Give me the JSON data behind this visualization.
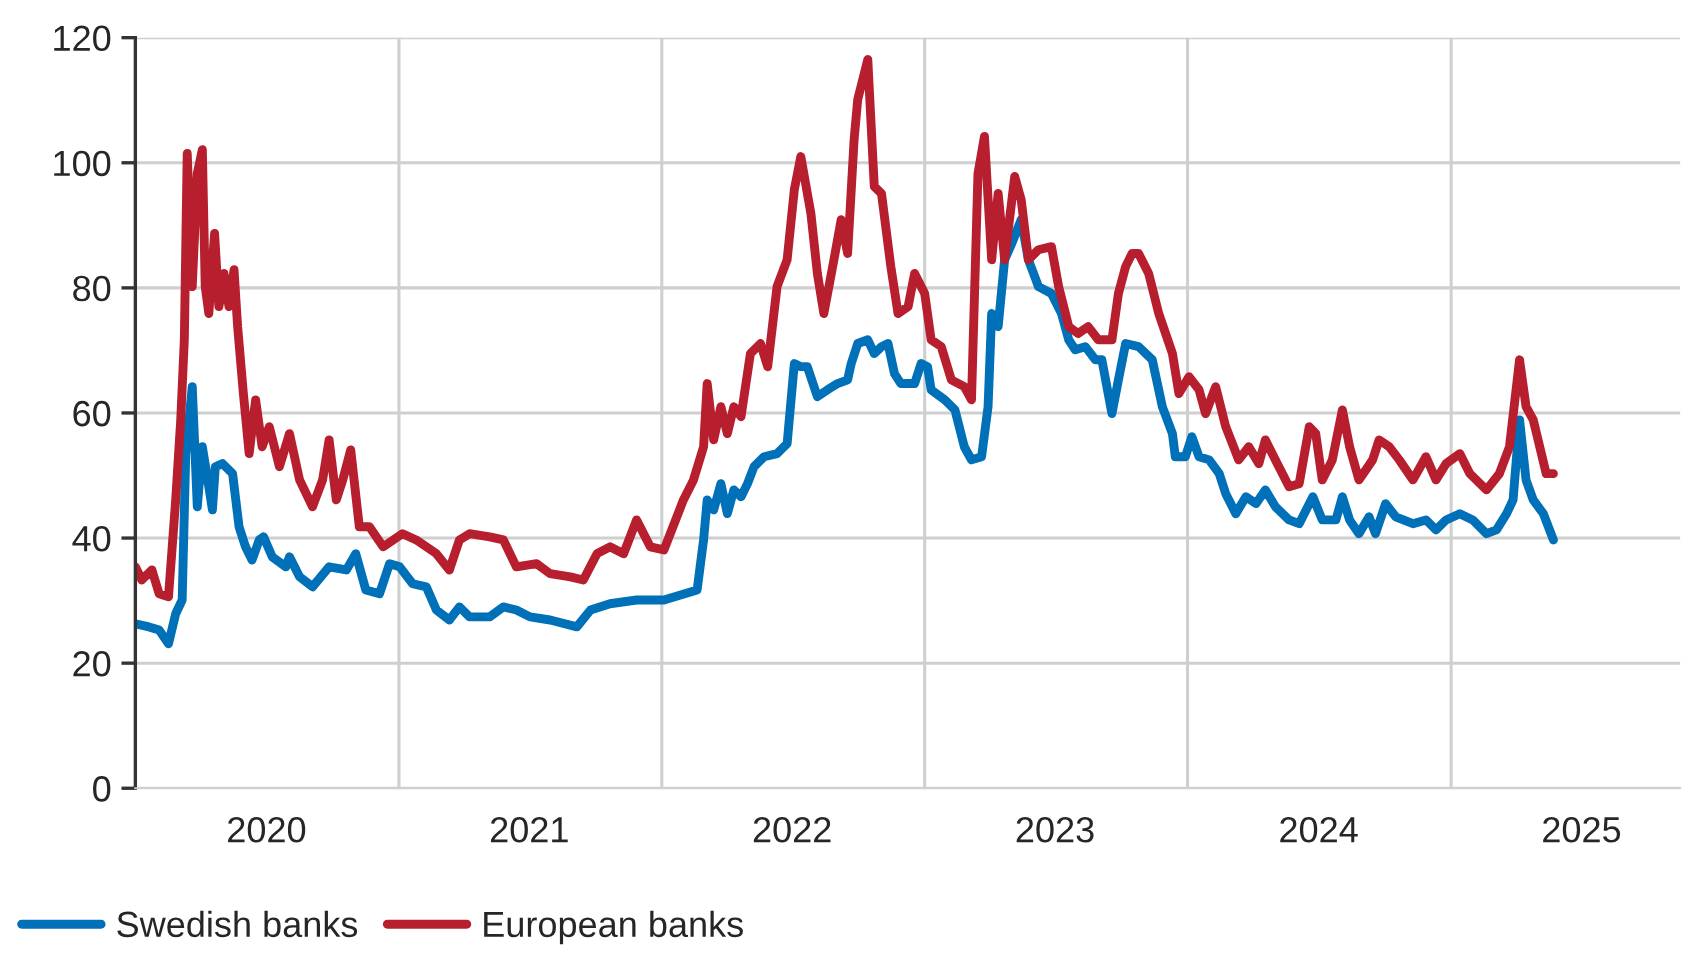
{
  "chart_data": {
    "type": "line",
    "xlim": [
      "2020-01-01",
      "2025-11-15"
    ],
    "xticks": [
      {
        "value": "2020-07-01",
        "label": "2020"
      },
      {
        "value": "2021-01-01",
        "label": null
      },
      {
        "value": "2021-07-01",
        "label": "2021"
      },
      {
        "value": "2022-01-01",
        "label": null
      },
      {
        "value": "2022-07-01",
        "label": "2022"
      },
      {
        "value": "2023-01-01",
        "label": null
      },
      {
        "value": "2023-07-01",
        "label": "2023"
      },
      {
        "value": "2024-01-01",
        "label": null
      },
      {
        "value": "2024-07-01",
        "label": "2024"
      },
      {
        "value": "2025-01-01",
        "label": null
      },
      {
        "value": "2025-07-01",
        "label": "2025"
      }
    ],
    "ylim": [
      0,
      120
    ],
    "yticks": [
      0,
      20,
      40,
      60,
      80,
      100,
      120
    ],
    "grid": true,
    "legend": "bottom",
    "marker": "none",
    "line_style": "solid",
    "series": [
      {
        "name": "Swedish banks",
        "color": "#0070b8",
        "x": [
          "2020-01-01",
          "2020-01-20",
          "2020-02-03",
          "2020-02-16",
          "2020-02-26",
          "2020-03-06",
          "2020-03-11",
          "2020-03-20",
          "2020-03-27",
          "2020-04-03",
          "2020-04-12",
          "2020-04-17",
          "2020-04-21",
          "2020-05-01",
          "2020-05-15",
          "2020-05-24",
          "2020-06-02",
          "2020-06-11",
          "2020-06-21",
          "2020-06-27",
          "2020-07-09",
          "2020-07-28",
          "2020-08-02",
          "2020-08-16",
          "2020-09-03",
          "2020-09-26",
          "2020-10-20",
          "2020-11-02",
          "2020-11-16",
          "2020-12-05",
          "2020-12-19",
          "2021-01-02",
          "2021-01-20",
          "2021-02-08",
          "2021-02-22",
          "2021-03-12",
          "2021-03-26",
          "2021-04-09",
          "2021-05-07",
          "2021-05-26",
          "2021-06-13",
          "2021-07-02",
          "2021-07-30",
          "2021-09-05",
          "2021-09-24",
          "2021-10-21",
          "2021-11-27",
          "2022-01-04",
          "2022-02-19",
          "2022-02-28",
          "2022-03-05",
          "2022-03-14",
          "2022-03-24",
          "2022-04-02",
          "2022-04-11",
          "2022-04-21",
          "2022-04-30",
          "2022-05-09",
          "2022-05-23",
          "2022-06-10",
          "2022-06-24",
          "2022-07-04",
          "2022-07-13",
          "2022-07-22",
          "2022-08-05",
          "2022-08-19",
          "2022-09-02",
          "2022-09-16",
          "2022-09-21",
          "2022-09-30",
          "2022-10-14",
          "2022-10-23",
          "2022-11-02",
          "2022-11-11",
          "2022-11-20",
          "2022-11-29",
          "2022-12-18",
          "2022-12-27",
          "2023-01-05",
          "2023-01-10",
          "2023-01-29",
          "2023-02-12",
          "2023-02-25",
          "2023-03-07",
          "2023-03-21",
          "2023-03-30",
          "2023-04-04",
          "2023-04-13",
          "2023-04-22",
          "2023-05-02",
          "2023-05-15",
          "2023-05-25",
          "2023-06-08",
          "2023-06-26",
          "2023-07-10",
          "2023-07-20",
          "2023-07-29",
          "2023-08-12",
          "2023-08-26",
          "2023-09-04",
          "2023-09-18",
          "2023-09-27",
          "2023-10-07",
          "2023-10-25",
          "2023-11-13",
          "2023-11-27",
          "2023-12-11",
          "2023-12-15",
          "2023-12-29",
          "2024-01-07",
          "2024-01-17",
          "2024-01-31",
          "2024-02-14",
          "2024-02-23",
          "2024-03-08",
          "2024-03-22",
          "2024-04-05",
          "2024-04-18",
          "2024-05-02",
          "2024-05-21",
          "2024-06-04",
          "2024-06-23",
          "2024-07-06",
          "2024-07-25",
          "2024-08-03",
          "2024-08-13",
          "2024-08-26",
          "2024-09-09",
          "2024-09-18",
          "2024-10-02",
          "2024-10-16",
          "2024-11-09",
          "2024-11-27",
          "2024-12-11",
          "2024-12-25",
          "2025-01-13",
          "2025-01-31",
          "2025-02-19",
          "2025-03-05",
          "2025-03-19",
          "2025-03-28",
          "2025-04-06",
          "2025-04-15",
          "2025-04-25",
          "2025-05-09",
          "2025-05-23"
        ],
        "values": [
          26.3,
          25.8,
          25.3,
          23.1,
          27.9,
          30.1,
          53.5,
          64.2,
          45.0,
          54.6,
          48.2,
          44.5,
          51.4,
          51.9,
          50.3,
          41.8,
          38.6,
          36.5,
          39.7,
          40.2,
          37.0,
          35.4,
          37.0,
          33.8,
          32.2,
          35.4,
          34.9,
          37.5,
          31.7,
          31.1,
          35.9,
          35.4,
          32.7,
          32.2,
          28.5,
          26.9,
          29.0,
          27.4,
          27.4,
          29.0,
          28.5,
          27.4,
          26.9,
          25.8,
          28.5,
          29.5,
          30.1,
          30.1,
          31.7,
          39.7,
          46.1,
          44.5,
          48.7,
          43.9,
          47.7,
          46.6,
          48.7,
          51.4,
          53.0,
          53.5,
          55.1,
          67.9,
          67.4,
          67.4,
          62.6,
          63.7,
          64.7,
          65.3,
          67.9,
          71.1,
          71.7,
          69.5,
          70.6,
          71.1,
          66.3,
          64.7,
          64.7,
          67.9,
          67.4,
          63.7,
          62.1,
          60.5,
          54.6,
          52.5,
          53.0,
          61.0,
          75.9,
          73.8,
          84.5,
          87.1,
          90.9,
          84.5,
          80.2,
          79.1,
          75.9,
          71.7,
          70.1,
          70.6,
          68.5,
          68.5,
          59.9,
          65.3,
          71.1,
          70.6,
          68.5,
          61.0,
          56.7,
          53.0,
          53.0,
          56.2,
          53.0,
          52.5,
          50.3,
          47.1,
          43.9,
          46.6,
          45.5,
          47.7,
          45.0,
          42.9,
          42.3,
          46.6,
          42.9,
          42.9,
          46.6,
          42.9,
          40.7,
          43.4,
          40.7,
          45.5,
          43.4,
          42.3,
          42.9,
          41.3,
          42.9,
          43.9,
          42.9,
          40.7,
          41.3,
          43.9,
          46.1,
          58.9,
          49.3,
          46.1,
          43.9,
          39.7
        ]
      },
      {
        "name": "European banks",
        "color": "#b81f2e",
        "x": [
          "2020-01-01",
          "2020-01-10",
          "2020-01-24",
          "2020-02-03",
          "2020-02-16",
          "2020-02-26",
          "2020-03-04",
          "2020-03-09",
          "2020-03-13",
          "2020-03-20",
          "2020-03-27",
          "2020-04-03",
          "2020-04-07",
          "2020-04-12",
          "2020-04-20",
          "2020-04-26",
          "2020-05-03",
          "2020-05-10",
          "2020-05-17",
          "2020-05-22",
          "2020-05-30",
          "2020-06-07",
          "2020-06-16",
          "2020-06-25",
          "2020-07-05",
          "2020-07-19",
          "2020-08-02",
          "2020-08-16",
          "2020-09-03",
          "2020-09-17",
          "2020-09-26",
          "2020-10-06",
          "2020-10-15",
          "2020-10-26",
          "2020-11-07",
          "2020-11-21",
          "2020-12-10",
          "2021-01-06",
          "2021-01-25",
          "2021-02-22",
          "2021-03-12",
          "2021-03-26",
          "2021-04-09",
          "2021-05-07",
          "2021-05-26",
          "2021-06-13",
          "2021-07-11",
          "2021-07-30",
          "2021-08-27",
          "2021-09-14",
          "2021-10-03",
          "2021-10-21",
          "2021-11-09",
          "2021-11-27",
          "2021-12-16",
          "2022-01-04",
          "2022-01-31",
          "2022-02-14",
          "2022-02-28",
          "2022-03-05",
          "2022-03-14",
          "2022-03-24",
          "2022-04-02",
          "2022-04-11",
          "2022-04-21",
          "2022-05-04",
          "2022-05-18",
          "2022-05-28",
          "2022-06-10",
          "2022-06-24",
          "2022-07-04",
          "2022-07-13",
          "2022-07-27",
          "2022-08-05",
          "2022-08-14",
          "2022-08-28",
          "2022-09-07",
          "2022-09-16",
          "2022-09-25",
          "2022-09-30",
          "2022-10-14",
          "2022-10-23",
          "2022-11-02",
          "2022-11-15",
          "2022-11-25",
          "2022-12-09",
          "2022-12-18",
          "2023-01-01",
          "2023-01-10",
          "2023-01-24",
          "2023-02-07",
          "2023-02-25",
          "2023-03-07",
          "2023-03-16",
          "2023-03-25",
          "2023-04-04",
          "2023-04-13",
          "2023-04-22",
          "2023-05-06",
          "2023-05-15",
          "2023-05-25",
          "2023-06-08",
          "2023-06-26",
          "2023-07-06",
          "2023-07-20",
          "2023-08-02",
          "2023-08-16",
          "2023-08-30",
          "2023-09-18",
          "2023-09-27",
          "2023-10-07",
          "2023-10-16",
          "2023-10-25",
          "2023-11-08",
          "2023-11-22",
          "2023-12-11",
          "2023-12-20",
          "2024-01-03",
          "2024-01-17",
          "2024-01-26",
          "2024-02-09",
          "2024-02-23",
          "2024-03-12",
          "2024-03-26",
          "2024-04-09",
          "2024-04-18",
          "2024-05-02",
          "2024-05-21",
          "2024-06-04",
          "2024-06-18",
          "2024-06-27",
          "2024-07-06",
          "2024-07-20",
          "2024-08-03",
          "2024-08-13",
          "2024-08-26",
          "2024-09-14",
          "2024-09-23",
          "2024-10-07",
          "2024-10-21",
          "2024-11-09",
          "2024-11-27",
          "2024-12-11",
          "2024-12-25",
          "2025-01-13",
          "2025-01-27",
          "2025-02-19",
          "2025-03-09",
          "2025-03-23",
          "2025-04-06",
          "2025-04-15",
          "2025-04-25",
          "2025-05-04",
          "2025-05-13",
          "2025-05-23"
        ],
        "values": [
          35.4,
          33.3,
          34.9,
          31.1,
          30.6,
          46.1,
          58.9,
          71.7,
          101.5,
          80.2,
          98.3,
          102.1,
          80.2,
          75.9,
          88.7,
          77.0,
          82.3,
          77.0,
          82.9,
          73.8,
          63.1,
          53.5,
          62.1,
          54.6,
          57.8,
          51.4,
          56.7,
          49.3,
          45.0,
          49.3,
          55.7,
          46.1,
          49.3,
          54.1,
          41.8,
          41.8,
          38.6,
          40.7,
          39.7,
          37.5,
          34.9,
          39.7,
          40.7,
          40.2,
          39.7,
          35.4,
          35.9,
          34.3,
          33.8,
          33.3,
          37.5,
          38.6,
          37.5,
          42.9,
          38.6,
          38.1,
          46.1,
          49.3,
          54.6,
          64.7,
          55.7,
          61.0,
          56.7,
          61.0,
          59.4,
          69.5,
          71.1,
          67.4,
          80.2,
          84.5,
          95.7,
          101.0,
          91.9,
          82.3,
          75.9,
          84.5,
          90.9,
          85.5,
          103.7,
          110.1,
          116.5,
          96.2,
          95.1,
          83.4,
          75.9,
          77.0,
          82.3,
          79.1,
          71.7,
          70.6,
          65.3,
          64.2,
          62.1,
          98.3,
          104.2,
          84.5,
          95.1,
          84.5,
          97.8,
          94.1,
          84.5,
          86.1,
          86.6,
          80.2,
          73.8,
          72.7,
          73.8,
          71.7,
          71.7,
          79.1,
          83.4,
          85.5,
          85.5,
          82.3,
          75.9,
          69.5,
          63.1,
          65.8,
          63.7,
          59.9,
          64.2,
          57.8,
          52.5,
          54.6,
          51.9,
          55.7,
          52.5,
          48.2,
          48.7,
          57.8,
          56.7,
          49.3,
          52.5,
          60.5,
          54.6,
          49.3,
          52.5,
          55.7,
          54.6,
          52.5,
          49.3,
          53.0,
          49.3,
          51.9,
          53.5,
          50.3,
          47.7,
          50.3,
          54.6,
          68.5,
          61.0,
          58.9,
          54.6,
          50.3,
          50.3
        ]
      }
    ]
  }
}
